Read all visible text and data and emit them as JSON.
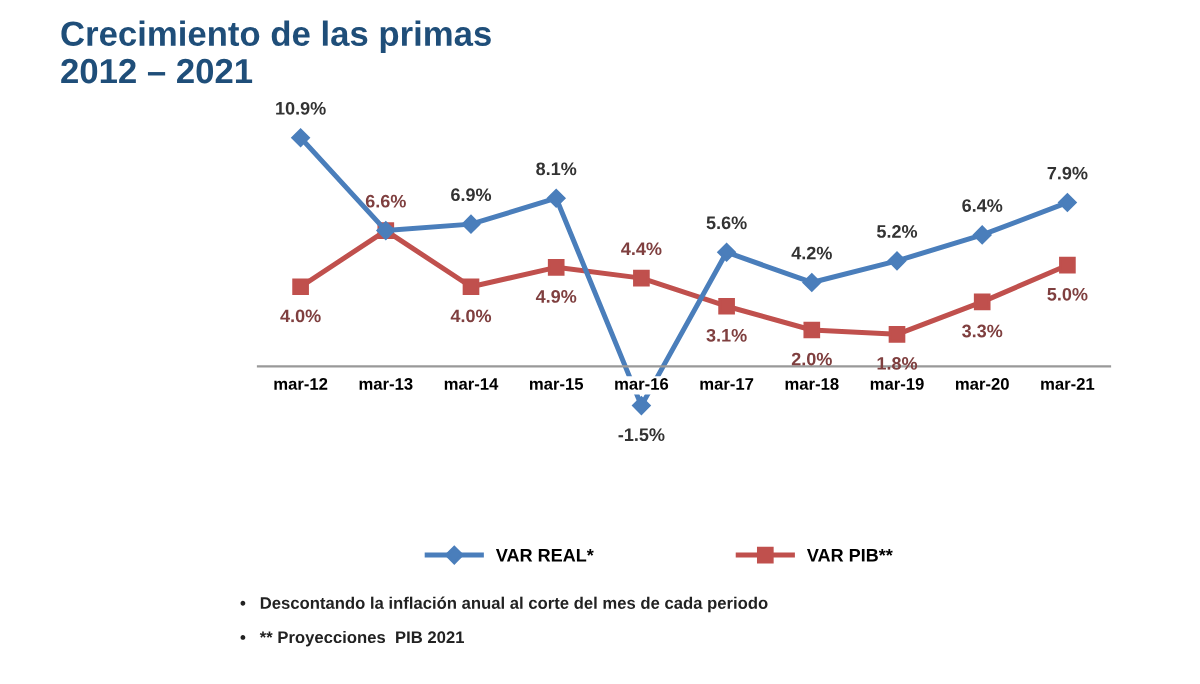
{
  "chart_data": {
    "type": "line",
    "title": "Crecimiento de las primas\n2012 – 2021",
    "categories": [
      "mar-12",
      "mar-13",
      "mar-14",
      "mar-15",
      "mar-16",
      "mar-17",
      "mar-18",
      "mar-19",
      "mar-20",
      "mar-21"
    ],
    "series": [
      {
        "name": "VAR REAL*",
        "color": "#4a7ebb",
        "marker": "diamond",
        "values": [
          10.9,
          6.6,
          6.9,
          8.1,
          -1.5,
          5.6,
          4.2,
          5.2,
          6.4,
          7.9
        ],
        "value_labels": [
          "10.9%",
          null,
          "6.9%",
          "8.1%",
          "-1.5%",
          "5.6%",
          "4.2%",
          "5.2%",
          "6.4%",
          "7.9%"
        ]
      },
      {
        "name": "VAR PIB**",
        "color": "#c0504d",
        "marker": "square",
        "values": [
          4.0,
          6.6,
          4.0,
          4.9,
          4.4,
          3.1,
          2.0,
          1.8,
          3.3,
          5.0
        ],
        "value_labels": [
          "4.0%",
          "6.6%",
          "4.0%",
          "4.9%",
          "4.4%",
          "3.1%",
          "2.0%",
          "1.8%",
          "3.3%",
          "5.0%"
        ]
      }
    ],
    "legend": "bottom",
    "grid": false,
    "line_style": "solid",
    "annotations": [
      "•   Descontando la inflación anual al corte del mes de cada periodo",
      "•   ** Proyecciones  PIB 2021"
    ]
  }
}
